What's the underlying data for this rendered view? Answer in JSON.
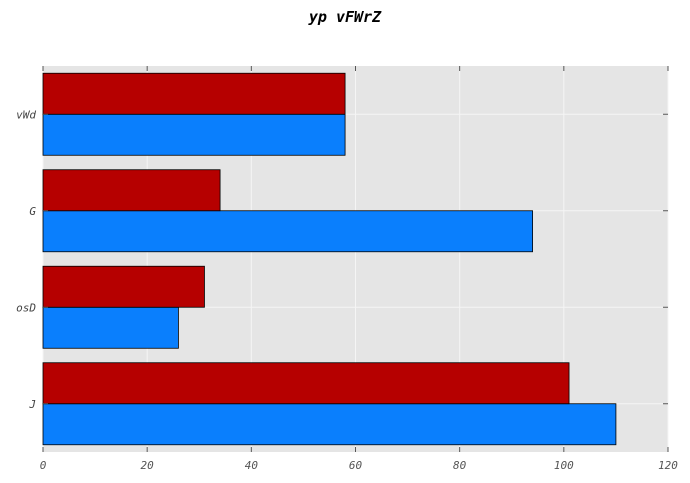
{
  "chart_data": {
    "type": "bar",
    "orientation": "horizontal",
    "title": "yp vFWrZ",
    "xlabel": "",
    "ylabel": "",
    "categories": [
      "J",
      "osD",
      "G",
      "vWd"
    ],
    "series": [
      {
        "values": [
          110,
          26,
          94,
          58
        ],
        "color": "#0a7ffd"
      },
      {
        "values": [
          101,
          31,
          34,
          58
        ],
        "color": "#b60000"
      }
    ],
    "xlim": [
      0,
      120
    ],
    "xticks": [
      0,
      20,
      40,
      60,
      80,
      100,
      120
    ],
    "grid": true,
    "background": "#e5e5e5",
    "gridline_color": "#f5f5f5"
  }
}
